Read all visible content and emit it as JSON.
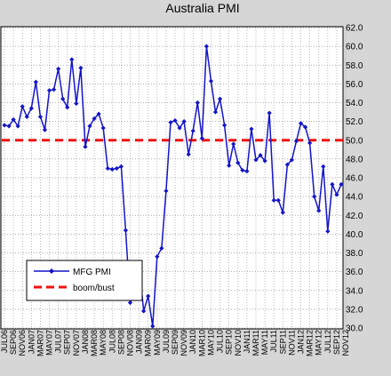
{
  "chart_data": {
    "type": "line",
    "title": "Australia PMI",
    "xlabel": "",
    "ylabel": "",
    "ylim": [
      30.0,
      62.0
    ],
    "ytick_step": 2,
    "grid": "dotted horizontal and vertical",
    "legend_placement": "lower-left",
    "x_tick_labels": [
      "JUL06",
      "SEP06",
      "NOV06",
      "JAN07",
      "MAR07",
      "MAY07",
      "JUL07",
      "SEP07",
      "NOV07",
      "JAN08",
      "MAR08",
      "MAY08",
      "JUL08",
      "SEP08",
      "NOV08",
      "JAN09",
      "MAR09",
      "MAY09",
      "JUL09",
      "SEP09",
      "NOV09",
      "JAN10",
      "MAR10",
      "MAY10",
      "JUL10",
      "SEP10",
      "NOV10",
      "JAN11",
      "MAR11",
      "MAY11",
      "JUL11",
      "SEP11",
      "NOV11",
      "JAN12",
      "MAR12",
      "MAY12",
      "JUL12",
      "SEP12",
      "NOV12"
    ],
    "series": [
      {
        "name": "MFG PMI",
        "color": "#1414c8",
        "style": "line-with-diamond-markers",
        "values": [
          51.6,
          51.5,
          52.2,
          51.5,
          53.6,
          52.5,
          53.4,
          56.2,
          52.5,
          51.1,
          55.3,
          55.4,
          57.6,
          54.4,
          53.5,
          58.6,
          53.9,
          57.7,
          49.3,
          51.5,
          52.3,
          52.8,
          51.3,
          47.0,
          46.9,
          47.0,
          47.2,
          40.4,
          32.7,
          33.7,
          36.6,
          31.8,
          33.4,
          30.2,
          37.6,
          38.5,
          44.6,
          51.9,
          52.1,
          51.3,
          52.0,
          48.5,
          51.0,
          54.0,
          50.2,
          60.0,
          56.3,
          53.0,
          54.4,
          51.6,
          47.3,
          49.6,
          47.6,
          46.8,
          46.7,
          51.2,
          47.9,
          48.4,
          47.8,
          52.9,
          43.6,
          43.6,
          42.3,
          47.4,
          47.9,
          49.9,
          51.8,
          51.4,
          49.7,
          44.0,
          42.5,
          47.2,
          40.3,
          45.3,
          44.2,
          45.3
        ]
      },
      {
        "name": "boom/bust",
        "color": "#ee1111",
        "style": "dashed",
        "values": [
          50.0
        ]
      }
    ]
  }
}
